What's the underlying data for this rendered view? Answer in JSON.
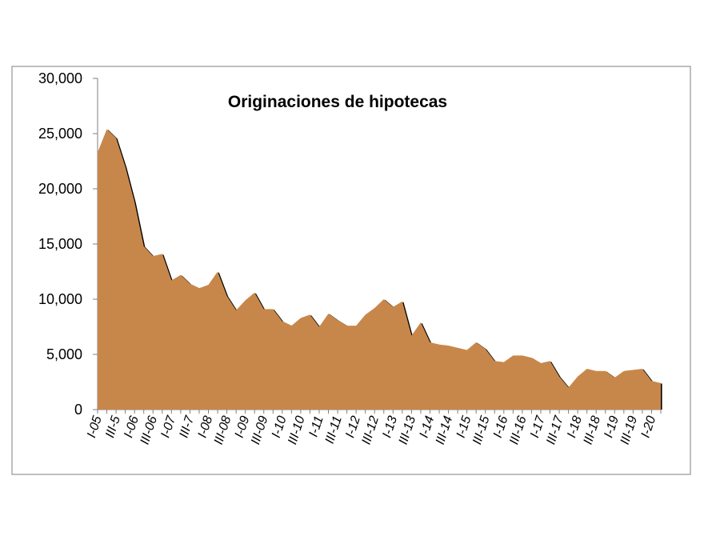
{
  "chart_data": {
    "type": "area",
    "title": "Originaciones de hipotecas",
    "xlabel": "",
    "ylabel": "",
    "ylim": [
      0,
      30000
    ],
    "yticks": [
      0,
      5000,
      10000,
      15000,
      20000,
      25000,
      30000
    ],
    "ytick_labels": [
      "0",
      "5,000",
      "10,000",
      "15,000",
      "20,000",
      "25,000",
      "30,000"
    ],
    "x_tick_labels": [
      "I-05",
      "III-5",
      "I-06",
      "III-06",
      "I-07",
      "III-7",
      "I-08",
      "III-08",
      "I-09",
      "III-09",
      "I-10",
      "III-10",
      "I-11",
      "III-11",
      "I-12",
      "III-12",
      "I-13",
      "III-13",
      "I-14",
      "III-14",
      "I-15",
      "III-15",
      "I-16",
      "III-16",
      "I-17",
      "III-17",
      "I-18",
      "III-18",
      "I-19",
      "III-19",
      "I-20"
    ],
    "fill_color": "#C8874A",
    "edge_color": "#000000",
    "grid": false,
    "legend": "none",
    "values": [
      23300,
      25400,
      24600,
      22000,
      18800,
      14800,
      13900,
      14100,
      11700,
      12200,
      11400,
      11000,
      11300,
      12500,
      10300,
      9000,
      9900,
      10600,
      9100,
      9100,
      8000,
      7600,
      8300,
      8600,
      7500,
      8700,
      8100,
      7600,
      7600,
      8600,
      9200,
      10000,
      9300,
      9800,
      6700,
      7900,
      6100,
      5900,
      5800,
      5600,
      5400,
      6100,
      5500,
      4400,
      4300,
      4900,
      4900,
      4700,
      4200,
      4400,
      3000,
      2000,
      3000,
      3700,
      3500,
      3500,
      2900,
      3500,
      3600,
      3700,
      2600,
      2400
    ]
  }
}
